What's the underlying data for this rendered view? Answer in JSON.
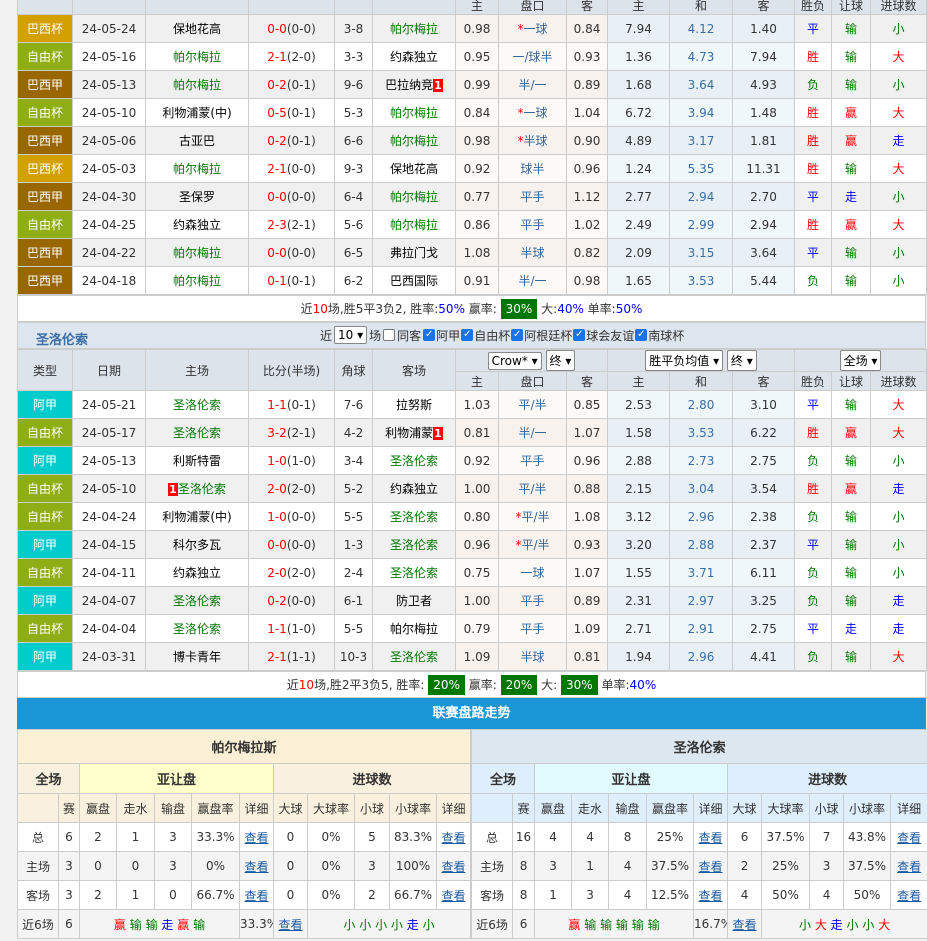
{
  "colors": {
    "巴西杯": "#d4a000",
    "自由杯": "#8fad15",
    "巴西甲": "#996600",
    "阿甲": "#00cccc"
  },
  "sub_headers": [
    "主",
    "盘口",
    "客",
    "主",
    "和",
    "客",
    "胜负",
    "让球",
    "进球数"
  ],
  "team1": {
    "name": "帕尔梅拉",
    "rows": [
      [
        "巴西杯",
        "24-05-24",
        "保地花高",
        "0-0",
        "(0-0)",
        "3-8",
        "帕尔梅拉",
        "0.98",
        "*一球",
        "0.84",
        "7.94",
        "4.12",
        "1.40",
        "平",
        "输",
        "小"
      ],
      [
        "自由杯",
        "24-05-16",
        "帕尔梅拉",
        "2-1",
        "(2-0)",
        "3-3",
        "约森独立",
        "0.95",
        "一/球半",
        "0.93",
        "1.36",
        "4.73",
        "7.94",
        "胜",
        "输",
        "大"
      ],
      [
        "巴西甲",
        "24-05-13",
        "帕尔梅拉",
        "0-2",
        "(0-1)",
        "9-6",
        "巴拉纳竞",
        "0.99",
        "半/一",
        "0.89",
        "1.68",
        "3.64",
        "4.93",
        "负",
        "输",
        "小"
      ],
      [
        "自由杯",
        "24-05-10",
        "利物浦蒙(中)",
        "0-5",
        "(0-1)",
        "5-3",
        "帕尔梅拉",
        "0.84",
        "*一球",
        "1.04",
        "6.72",
        "3.94",
        "1.48",
        "胜",
        "赢",
        "大"
      ],
      [
        "巴西甲",
        "24-05-06",
        "古亚巴",
        "0-2",
        "(0-1)",
        "6-6",
        "帕尔梅拉",
        "0.98",
        "*半球",
        "0.90",
        "4.89",
        "3.17",
        "1.81",
        "胜",
        "赢",
        "走"
      ],
      [
        "巴西杯",
        "24-05-03",
        "帕尔梅拉",
        "2-1",
        "(0-0)",
        "9-3",
        "保地花高",
        "0.92",
        "球半",
        "0.96",
        "1.24",
        "5.35",
        "11.31",
        "胜",
        "输",
        "大"
      ],
      [
        "巴西甲",
        "24-04-30",
        "圣保罗",
        "0-0",
        "(0-0)",
        "6-4",
        "帕尔梅拉",
        "0.77",
        "平手",
        "1.12",
        "2.77",
        "2.94",
        "2.70",
        "平",
        "走",
        "小"
      ],
      [
        "自由杯",
        "24-04-25",
        "约森独立",
        "2-3",
        "(2-1)",
        "5-6",
        "帕尔梅拉",
        "0.86",
        "平手",
        "1.02",
        "2.49",
        "2.99",
        "2.94",
        "胜",
        "赢",
        "大"
      ],
      [
        "巴西甲",
        "24-04-22",
        "帕尔梅拉",
        "0-0",
        "(0-0)",
        "6-5",
        "弗拉门戈",
        "1.08",
        "半球",
        "0.82",
        "2.09",
        "3.15",
        "3.64",
        "平",
        "输",
        "小"
      ],
      [
        "巴西甲",
        "24-04-18",
        "帕尔梅拉",
        "0-1",
        "(0-1)",
        "6-2",
        "巴西国际",
        "0.91",
        "半/一",
        "0.98",
        "1.65",
        "3.53",
        "5.44",
        "负",
        "输",
        "小"
      ]
    ],
    "red_cards": [
      {
        "row": 2,
        "side": "away",
        "count": "1",
        "pos": "after"
      }
    ],
    "summary": [
      {
        "t": "近",
        "s": ""
      },
      {
        "t": "10",
        "s": "red"
      },
      {
        "t": "场,胜5平3负2, 胜率:",
        "s": ""
      },
      {
        "t": "50%",
        "s": "blue"
      },
      {
        "t": " 赢率: ",
        "s": ""
      },
      {
        "t": "30%",
        "s": "box"
      },
      {
        "t": " 大:",
        "s": ""
      },
      {
        "t": "40%",
        "s": "blue"
      },
      {
        "t": " 单率:",
        "s": ""
      },
      {
        "t": "50%",
        "s": "blue"
      }
    ]
  },
  "team2": {
    "name": "圣洛伦索",
    "filters": {
      "prefix": "近",
      "count": "10",
      "suffix": "场",
      "same": "同客",
      "leagues": [
        "阿甲",
        "自由杯",
        "阿根廷杯",
        "球会友谊",
        "南球杯"
      ]
    },
    "headers": [
      "类型",
      "日期",
      "主场",
      "比分(半场)",
      "角球",
      "客场"
    ],
    "selects": {
      "company": "Crow*",
      "company_state": "终",
      "odds_type": "胜平负均值",
      "odds_state": "终",
      "period": "全场"
    },
    "rows": [
      [
        "阿甲",
        "24-05-21",
        "圣洛伦索",
        "1-1",
        "(0-1)",
        "7-6",
        "拉努斯",
        "1.03",
        "平/半",
        "0.85",
        "2.53",
        "2.80",
        "3.10",
        "平",
        "输",
        "大"
      ],
      [
        "自由杯",
        "24-05-17",
        "圣洛伦索",
        "3-2",
        "(2-1)",
        "4-2",
        "利物浦蒙",
        "0.81",
        "半/一",
        "1.07",
        "1.58",
        "3.53",
        "6.22",
        "胜",
        "赢",
        "大"
      ],
      [
        "阿甲",
        "24-05-13",
        "利斯特雷",
        "1-0",
        "(1-0)",
        "3-4",
        "圣洛伦索",
        "0.92",
        "平手",
        "0.96",
        "2.88",
        "2.73",
        "2.75",
        "负",
        "输",
        "小"
      ],
      [
        "自由杯",
        "24-05-10",
        "圣洛伦索",
        "2-0",
        "(2-0)",
        "5-2",
        "约森独立",
        "1.00",
        "平/半",
        "0.88",
        "2.15",
        "3.04",
        "3.54",
        "胜",
        "赢",
        "走"
      ],
      [
        "自由杯",
        "24-04-24",
        "利物浦蒙(中)",
        "1-0",
        "(0-0)",
        "5-5",
        "圣洛伦索",
        "0.80",
        "*平/半",
        "1.08",
        "3.12",
        "2.96",
        "2.38",
        "负",
        "输",
        "小"
      ],
      [
        "阿甲",
        "24-04-15",
        "科尔多瓦",
        "0-0",
        "(0-0)",
        "1-3",
        "圣洛伦索",
        "0.96",
        "*平/半",
        "0.93",
        "3.20",
        "2.88",
        "2.37",
        "平",
        "输",
        "小"
      ],
      [
        "自由杯",
        "24-04-11",
        "约森独立",
        "2-0",
        "(2-0)",
        "2-4",
        "圣洛伦索",
        "0.75",
        "一球",
        "1.07",
        "1.55",
        "3.71",
        "6.11",
        "负",
        "输",
        "小"
      ],
      [
        "阿甲",
        "24-04-07",
        "圣洛伦索",
        "0-2",
        "(0-0)",
        "6-1",
        "防卫者",
        "1.00",
        "平手",
        "0.89",
        "2.31",
        "2.97",
        "3.25",
        "负",
        "输",
        "走"
      ],
      [
        "自由杯",
        "24-04-04",
        "圣洛伦索",
        "1-1",
        "(1-0)",
        "5-5",
        "帕尔梅拉",
        "0.79",
        "平手",
        "1.09",
        "2.71",
        "2.91",
        "2.75",
        "平",
        "走",
        "走"
      ],
      [
        "阿甲",
        "24-03-31",
        "博卡青年",
        "2-1",
        "(1-1)",
        "10-3",
        "圣洛伦索",
        "1.09",
        "半球",
        "0.81",
        "1.94",
        "2.96",
        "4.41",
        "负",
        "输",
        "大"
      ]
    ],
    "red_cards": [
      {
        "row": 1,
        "side": "away",
        "count": "1",
        "pos": "after"
      },
      {
        "row": 3,
        "side": "home",
        "count": "1",
        "pos": "before"
      }
    ],
    "summary": [
      {
        "t": "近",
        "s": ""
      },
      {
        "t": "10",
        "s": "red"
      },
      {
        "t": "场,胜2平3负5, 胜率: ",
        "s": ""
      },
      {
        "t": "20%",
        "s": "box"
      },
      {
        "t": " 赢率: ",
        "s": ""
      },
      {
        "t": "20%",
        "s": "box"
      },
      {
        "t": " 大: ",
        "s": ""
      },
      {
        "t": "30%",
        "s": "box"
      },
      {
        "t": " 单率:",
        "s": ""
      },
      {
        "t": "40%",
        "s": "blue"
      }
    ]
  },
  "trend": {
    "title": "联赛盘路走势",
    "groups": [
      "全场",
      "亚让盘",
      "进球数"
    ],
    "cols": [
      "",
      "赛",
      "赢盘",
      "走水",
      "输盘",
      "赢盘率",
      "详细",
      "大球",
      "大球率",
      "小球",
      "小球率",
      "详细"
    ],
    "link": "查看",
    "teams": [
      {
        "name": "帕尔梅拉斯",
        "rows": [
          [
            "总",
            "6",
            "2",
            "1",
            "3",
            "33.3%",
            "0",
            "0%",
            "5",
            "83.3%"
          ],
          [
            "主场",
            "3",
            "0",
            "0",
            "3",
            "0%",
            "0",
            "0%",
            "3",
            "100%"
          ],
          [
            "客场",
            "3",
            "2",
            "1",
            "0",
            "66.7%",
            "0",
            "0%",
            "2",
            "66.7%"
          ]
        ],
        "recent": {
          "label": "近6场",
          "n": "6",
          "ah": [
            "赢",
            "输",
            "输",
            "走",
            "赢",
            "输"
          ],
          "rate": "33.3%",
          "ou": [
            "小",
            "小",
            "小",
            "小",
            "走",
            "小"
          ]
        }
      },
      {
        "name": "圣洛伦索",
        "rows": [
          [
            "总",
            "16",
            "4",
            "4",
            "8",
            "25%",
            "6",
            "37.5%",
            "7",
            "43.8%"
          ],
          [
            "主场",
            "8",
            "3",
            "1",
            "4",
            "37.5%",
            "2",
            "25%",
            "3",
            "37.5%"
          ],
          [
            "客场",
            "8",
            "1",
            "3",
            "4",
            "12.5%",
            "4",
            "50%",
            "4",
            "50%"
          ]
        ],
        "recent": {
          "label": "近6场",
          "n": "6",
          "ah": [
            "赢",
            "输",
            "输",
            "输",
            "输",
            "输"
          ],
          "rate": "16.7%",
          "ou": [
            "小",
            "大",
            "走",
            "小",
            "小",
            "大"
          ]
        }
      }
    ]
  }
}
